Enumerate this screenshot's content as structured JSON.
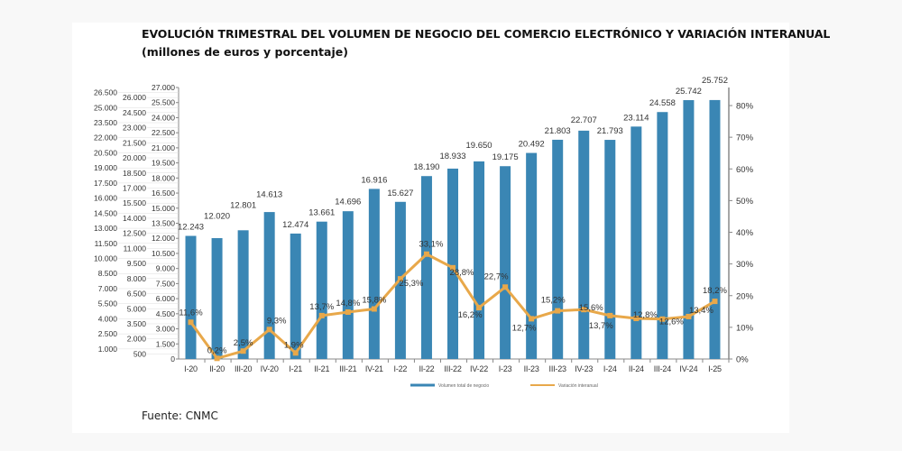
{
  "title": "EVOLUCIÓN TRIMESTRAL DEL VOLUMEN DE NEGOCIO DEL COMERCIO ELECTRÓNICO Y VARIACIÓN INTERANUAL",
  "subtitle": "(millones de euros y porcentaje)",
  "source": "Fuente: CNMC",
  "chart_data": {
    "type": "bar+line",
    "categories": [
      "I-20",
      "II-20",
      "III-20",
      "IV-20",
      "I-21",
      "II-21",
      "III-21",
      "IV-21",
      "I-22",
      "II-22",
      "III-22",
      "IV-22",
      "I-23",
      "II-23",
      "III-23",
      "IV-23",
      "I-24",
      "II-24",
      "III-24",
      "IV-24",
      "I-25"
    ],
    "series": [
      {
        "name": "Volumen total de negocio",
        "type": "bar",
        "axis": "left",
        "color": "#3a86b4",
        "values": [
          12243,
          12020,
          12801,
          14613,
          12474,
          13661,
          14696,
          16916,
          15627,
          18190,
          18933,
          19650,
          19175,
          20492,
          21803,
          22707,
          21793,
          23114,
          24558,
          25742,
          25752
        ],
        "labels": [
          "12.243",
          "12.020",
          "12.801",
          "14.613",
          "12.474",
          "13.661",
          "14.696",
          "16.916",
          "15.627",
          "18.190",
          "18.933",
          "19.650",
          "19.175",
          "20.492",
          "21.803",
          "22.707",
          "21.793",
          "23.114",
          "24.558",
          "25.742",
          "25.752"
        ]
      },
      {
        "name": "Variación interanual",
        "type": "line",
        "axis": "right",
        "color": "#e8a84a",
        "values": [
          11.6,
          0.2,
          2.5,
          9.3,
          1.9,
          13.7,
          14.8,
          15.8,
          25.3,
          33.1,
          28.8,
          16.2,
          22.7,
          12.7,
          15.2,
          15.6,
          13.7,
          12.8,
          12.6,
          13.4,
          18.2
        ],
        "labels": [
          "11,6%",
          "0,2%",
          "2,5%",
          "9,3%",
          "1,9%",
          "13,7%",
          "14,8%",
          "15,8%",
          "25,3%",
          "33,1%",
          "28,8%",
          "16,2%",
          "22,7%",
          "12,7%",
          "15,2%",
          "15,6%",
          "13,7%",
          "12,8%",
          "12,6%",
          "13,4%",
          "18,2%"
        ]
      }
    ],
    "left_axis": {
      "ylim": [
        0,
        27000
      ],
      "tick_step": 500
    },
    "right_axis": {
      "ylim": [
        0,
        85.7
      ],
      "ticks": [
        "0%",
        "10%",
        "20%",
        "30%",
        "40%",
        "50%",
        "60%",
        "70%",
        "80%"
      ]
    },
    "legend_position": "bottom",
    "grid": false
  }
}
